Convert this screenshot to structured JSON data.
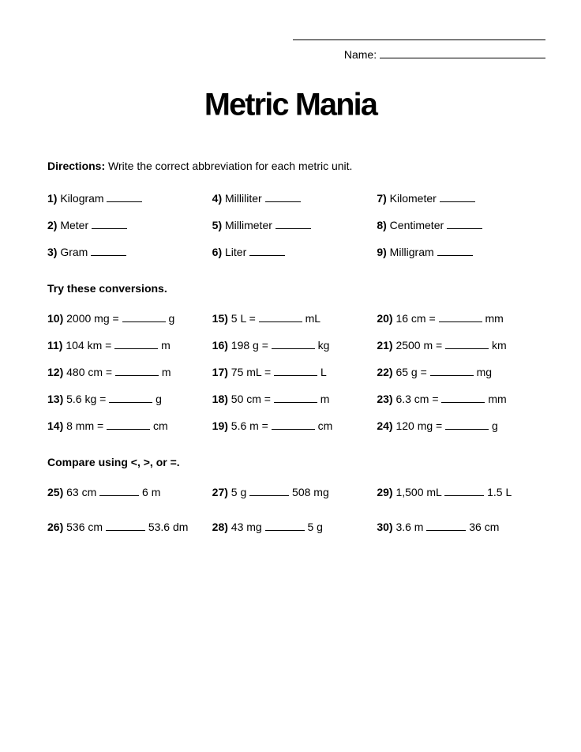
{
  "header": {
    "name_label": "Name:"
  },
  "title": "Metric Mania",
  "directions": {
    "label": "Directions:",
    "text": "Write the correct abbreviation for each metric unit."
  },
  "abbrev": [
    {
      "n": "1)",
      "t": "Kilogram"
    },
    {
      "n": "4)",
      "t": "Milliliter"
    },
    {
      "n": "7)",
      "t": "Kilometer"
    },
    {
      "n": "2)",
      "t": "Meter"
    },
    {
      "n": "5)",
      "t": "Millimeter"
    },
    {
      "n": "8)",
      "t": "Centimeter"
    },
    {
      "n": "3)",
      "t": "Gram"
    },
    {
      "n": "6)",
      "t": "Liter"
    },
    {
      "n": "9)",
      "t": "Milligram"
    }
  ],
  "conv_head": "Try these conversions.",
  "conv": [
    {
      "n": "10)",
      "lhs": "2000 mg =",
      "unit": "g"
    },
    {
      "n": "15)",
      "lhs": "5 L =",
      "unit": "mL"
    },
    {
      "n": "20)",
      "lhs": "16 cm =",
      "unit": "mm"
    },
    {
      "n": "11)",
      "lhs": "104 km =",
      "unit": "m"
    },
    {
      "n": "16)",
      "lhs": "198 g =",
      "unit": "kg"
    },
    {
      "n": "21)",
      "lhs": "2500 m =",
      "unit": "km"
    },
    {
      "n": "12)",
      "lhs": "480 cm =",
      "unit": "m"
    },
    {
      "n": "17)",
      "lhs": "75 mL =",
      "unit": "L"
    },
    {
      "n": "22)",
      "lhs": "65 g =",
      "unit": "mg"
    },
    {
      "n": "13)",
      "lhs": "5.6 kg =",
      "unit": "g"
    },
    {
      "n": "18)",
      "lhs": "50 cm =",
      "unit": "m"
    },
    {
      "n": "23)",
      "lhs": "6.3 cm =",
      "unit": "mm"
    },
    {
      "n": "14)",
      "lhs": "8 mm =",
      "unit": "cm"
    },
    {
      "n": "19)",
      "lhs": "5.6 m =",
      "unit": "cm"
    },
    {
      "n": "24)",
      "lhs": "120 mg =",
      "unit": "g"
    }
  ],
  "cmp_head": "Compare using <, >, or =.",
  "cmp": [
    {
      "n": "25)",
      "a": "63 cm",
      "b": "6 m"
    },
    {
      "n": "27)",
      "a": "5 g",
      "b": "508 mg"
    },
    {
      "n": "29)",
      "a": "1,500 mL",
      "b": "1.5 L"
    },
    {
      "n": "26)",
      "a": "536 cm",
      "b": "53.6 dm"
    },
    {
      "n": "28)",
      "a": "43 mg",
      "b": "5 g"
    },
    {
      "n": "30)",
      "a": "3.6 m",
      "b": "36 cm"
    }
  ]
}
